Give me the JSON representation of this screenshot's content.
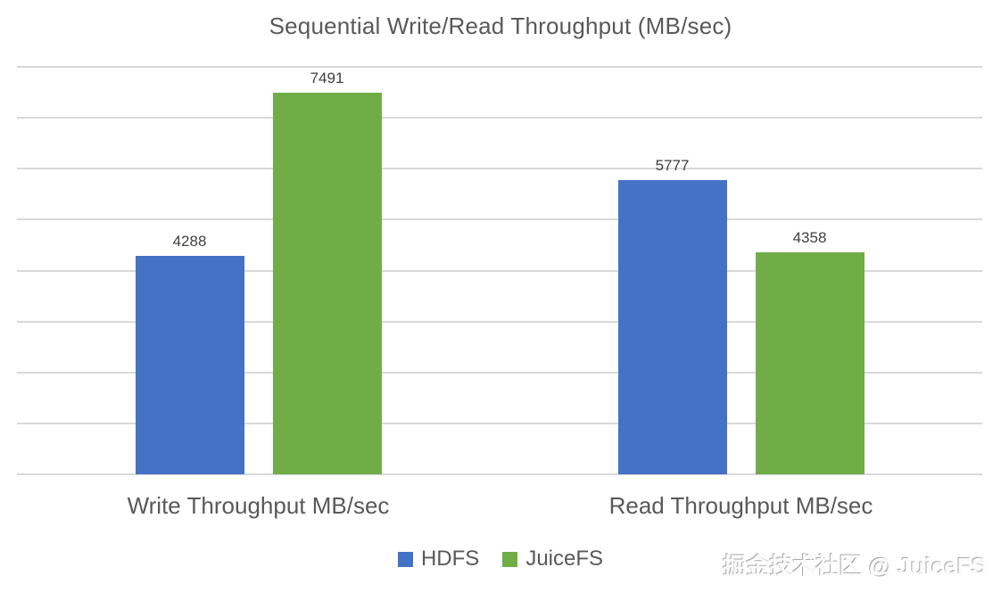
{
  "title": "Sequential Write/Read Throughput (MB/sec)",
  "watermark": "掘金技术社区 @ JuiceFS",
  "colors": {
    "hdfs": "#4472C4",
    "juicefs": "#70AD47",
    "gridline": "#D9D9D9",
    "title_text": "#595959",
    "data_label_text": "#404040"
  },
  "chart_data": {
    "type": "bar",
    "title": "Sequential Write/Read Throughput (MB/sec)",
    "categories": [
      "Write Throughput MB/sec",
      "Read Throughput MB/sec"
    ],
    "series": [
      {
        "name": "HDFS",
        "color": "#4472C4",
        "values": [
          4288,
          5777
        ]
      },
      {
        "name": "JuiceFS",
        "color": "#70AD47",
        "values": [
          7491,
          4358
        ]
      }
    ],
    "ylim": [
      0,
      8000
    ],
    "grid_step": 1000,
    "grid": true,
    "y_axis_tick_labels_visible": false,
    "data_labels": true,
    "legend_position": "bottom"
  }
}
